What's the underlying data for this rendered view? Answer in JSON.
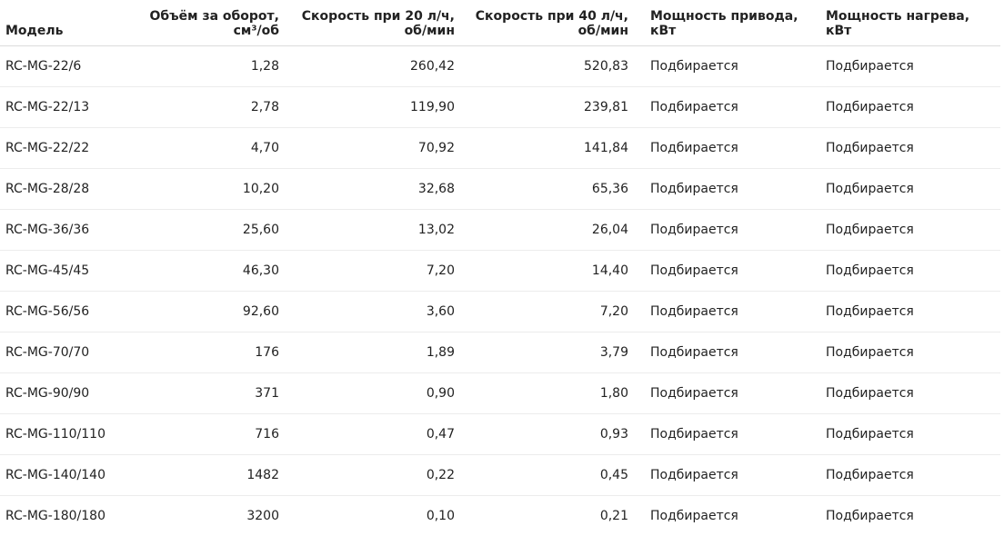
{
  "table": {
    "headers": {
      "model": "Модель",
      "volume_line1": "Объём за оборот,",
      "volume_line2": "см³/об",
      "speed20_line1": "Скорость при 20 л/ч,",
      "speed20_line2": "об/мин",
      "speed40_line1": "Скорость при 40 л/ч,",
      "speed40_line2": "об/мин",
      "drive_line1": "Мощность привода,",
      "drive_line2": "кВт",
      "heat_line1": "Мощность нагрева,",
      "heat_line2": "кВт"
    },
    "rows": [
      {
        "model": "RC-MG-22/6",
        "volume": "1,28",
        "speed20": "260,42",
        "speed40": "520,83",
        "drive": "Подбирается",
        "heat": "Подбирается"
      },
      {
        "model": "RC-MG-22/13",
        "volume": "2,78",
        "speed20": "119,90",
        "speed40": "239,81",
        "drive": "Подбирается",
        "heat": "Подбирается"
      },
      {
        "model": "RC-MG-22/22",
        "volume": "4,70",
        "speed20": "70,92",
        "speed40": "141,84",
        "drive": "Подбирается",
        "heat": "Подбирается"
      },
      {
        "model": "RC-MG-28/28",
        "volume": "10,20",
        "speed20": "32,68",
        "speed40": "65,36",
        "drive": "Подбирается",
        "heat": "Подбирается"
      },
      {
        "model": "RC-MG-36/36",
        "volume": "25,60",
        "speed20": "13,02",
        "speed40": "26,04",
        "drive": "Подбирается",
        "heat": "Подбирается"
      },
      {
        "model": "RC-MG-45/45",
        "volume": "46,30",
        "speed20": "7,20",
        "speed40": "14,40",
        "drive": "Подбирается",
        "heat": "Подбирается"
      },
      {
        "model": "RC-MG-56/56",
        "volume": "92,60",
        "speed20": "3,60",
        "speed40": "7,20",
        "drive": "Подбирается",
        "heat": "Подбирается"
      },
      {
        "model": "RC-MG-70/70",
        "volume": "176",
        "speed20": "1,89",
        "speed40": "3,79",
        "drive": "Подбирается",
        "heat": "Подбирается"
      },
      {
        "model": "RC-MG-90/90",
        "volume": "371",
        "speed20": "0,90",
        "speed40": "1,80",
        "drive": "Подбирается",
        "heat": "Подбирается"
      },
      {
        "model": "RC-MG-110/110",
        "volume": "716",
        "speed20": "0,47",
        "speed40": "0,93",
        "drive": "Подбирается",
        "heat": "Подбирается"
      },
      {
        "model": "RC-MG-140/140",
        "volume": "1482",
        "speed20": "0,22",
        "speed40": "0,45",
        "drive": "Подбирается",
        "heat": "Подбирается"
      },
      {
        "model": "RC-MG-180/180",
        "volume": "3200",
        "speed20": "0,10",
        "speed40": "0,21",
        "drive": "Подбирается",
        "heat": "Подбирается"
      }
    ]
  }
}
